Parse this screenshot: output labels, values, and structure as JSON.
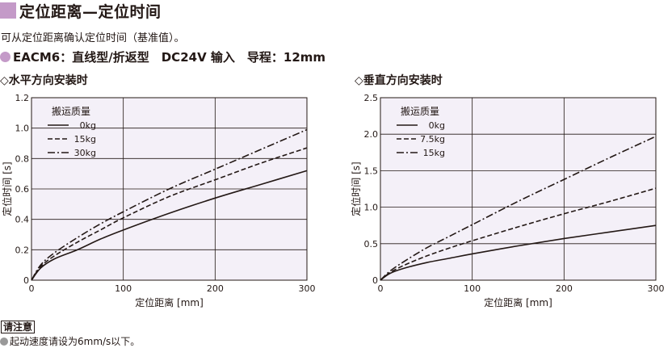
{
  "header": {
    "title": "定位距离—定位时间",
    "subtitle": "可从定位距离确认定位时间（基准值）。",
    "model_name": "EACM6",
    "model_sep": "：",
    "model_specs": "直线型/折返型　DC24V 输入　导程：12mm",
    "accent_color": "#c49ac8"
  },
  "chart_data": [
    {
      "type": "line",
      "heading": "◇水平方向安装时",
      "xlabel": "定位距离 [mm]",
      "ylabel": "定位时间 [s]",
      "xlim": [
        0,
        300
      ],
      "ylim": [
        0,
        1.2
      ],
      "xticks": [
        "0",
        "100",
        "200",
        "300"
      ],
      "yticks": [
        "0",
        "0.2",
        "0.4",
        "0.6",
        "0.8",
        "1.0",
        "1.2"
      ],
      "grid": true,
      "legend_title": "搬运质量",
      "legend_position": "top-left",
      "x": [
        0,
        10,
        25,
        50,
        75,
        100,
        150,
        200,
        250,
        300
      ],
      "series": [
        {
          "name": "0kg",
          "style": "solid",
          "values": [
            0,
            0.08,
            0.14,
            0.2,
            0.27,
            0.33,
            0.44,
            0.54,
            0.63,
            0.72
          ]
        },
        {
          "name": "15kg",
          "style": "dashed",
          "values": [
            0,
            0.09,
            0.16,
            0.25,
            0.33,
            0.41,
            0.55,
            0.66,
            0.77,
            0.87
          ]
        },
        {
          "name": "30kg",
          "style": "dashdot",
          "values": [
            0,
            0.1,
            0.18,
            0.28,
            0.37,
            0.45,
            0.6,
            0.73,
            0.86,
            0.99
          ]
        }
      ]
    },
    {
      "type": "line",
      "heading": "◇垂直方向安装时",
      "xlabel": "定位距离 [mm]",
      "ylabel": "定位时间 [s]",
      "xlim": [
        0,
        300
      ],
      "ylim": [
        0,
        2.5
      ],
      "xticks": [
        "0",
        "100",
        "200",
        "300"
      ],
      "yticks": [
        "0",
        "0.5",
        "1.0",
        "1.5",
        "2.0",
        "2.5"
      ],
      "grid": true,
      "legend_title": "搬运质量",
      "legend_position": "top-left",
      "x": [
        0,
        10,
        25,
        50,
        75,
        100,
        150,
        200,
        250,
        300
      ],
      "series": [
        {
          "name": "0kg",
          "style": "solid",
          "values": [
            0,
            0.09,
            0.16,
            0.24,
            0.3,
            0.36,
            0.47,
            0.57,
            0.66,
            0.75
          ]
        },
        {
          "name": "7.5kg",
          "style": "dashed",
          "values": [
            0,
            0.1,
            0.2,
            0.33,
            0.44,
            0.54,
            0.73,
            0.91,
            1.08,
            1.26
          ]
        },
        {
          "name": "15kg",
          "style": "dashdot",
          "values": [
            0,
            0.12,
            0.25,
            0.44,
            0.6,
            0.76,
            1.08,
            1.38,
            1.68,
            1.97
          ]
        }
      ]
    }
  ],
  "notes": {
    "label": "请注意",
    "text": "起动速度请设为6mm/s以下。"
  }
}
